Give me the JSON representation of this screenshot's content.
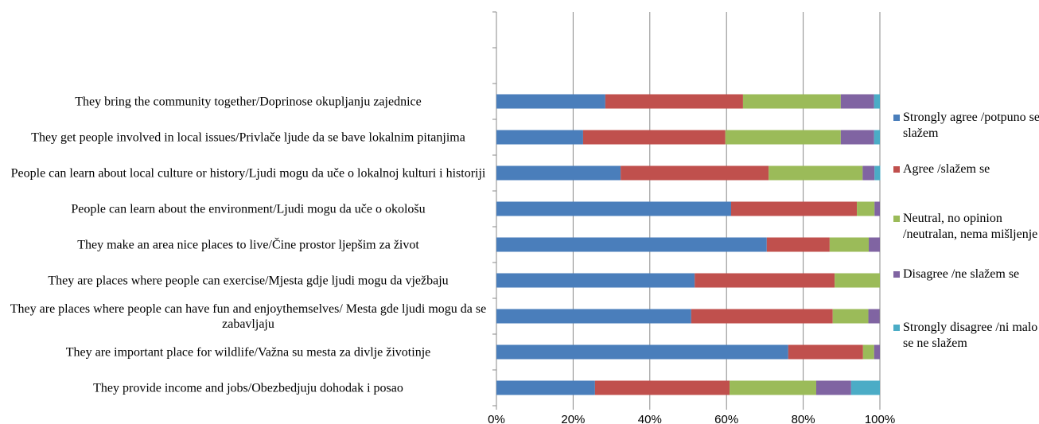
{
  "chart_data": {
    "type": "stacked-barh",
    "categories": [
      null,
      null,
      "They bring the community together/Doprinose okupljanju zajednice",
      "They get people involved in local issues/Privlače ljude da se bave lokalnim pitanjima",
      "People can learn about local culture or history/Ljudi mogu da uče o lokalnoj kulturi i historiji",
      "People can learn about the environment/Ljudi mogu da uče o okološu",
      "They make an area nice places to live/Čine prostor ljepšim za život",
      "They are places where people can exercise/Mjesta gdje ljudi mogu da vježbaju",
      "They are places where people can have fun and enjoythemselves/ Mesta gde ljudi mogu da se zabavljaju",
      "They are important place for wildlife/Važna su mesta za divlje životinje",
      "They provide income and jobs/Obezbedjuju dohodak i posao"
    ],
    "series": [
      {
        "name": "Strongly agree /potpuno se slažem",
        "color": "#4a7ebb",
        "values": [
          null,
          null,
          28.4,
          22.6,
          32.4,
          61.2,
          70.5,
          51.7,
          50.8,
          76.1,
          25.7
        ]
      },
      {
        "name": "Agree /slažem se",
        "color": "#c0504d",
        "values": [
          null,
          null,
          35.9,
          37.1,
          38.6,
          32.8,
          16.4,
          36.5,
          36.9,
          19.5,
          35.1
        ]
      },
      {
        "name": "Neutral, no opinion /neutralan, nema mišljenje",
        "color": "#9bbb59",
        "values": [
          null,
          null,
          25.5,
          30.1,
          24.5,
          4.6,
          10.2,
          11.8,
          9.3,
          2.9,
          22.6
        ]
      },
      {
        "name": "Disagree /ne slažem se",
        "color": "#8064a2",
        "values": [
          null,
          null,
          8.7,
          8.7,
          3.1,
          1.4,
          2.9,
          0,
          2.9,
          1.5,
          9.1
        ]
      },
      {
        "name": "Strongly disagree /ni malo se ne slažem",
        "color": "#4bacc6",
        "values": [
          null,
          null,
          1.5,
          1.5,
          1.5,
          0,
          0,
          0,
          0,
          0,
          7.5
        ]
      }
    ],
    "xlim": [
      0,
      100
    ],
    "xticks": [
      {
        "value": 0,
        "label": "0%"
      },
      {
        "value": 20,
        "label": "20%"
      },
      {
        "value": 40,
        "label": "40%"
      },
      {
        "value": 60,
        "label": "60%"
      },
      {
        "value": 80,
        "label": "80%"
      },
      {
        "value": 100,
        "label": "100%"
      }
    ],
    "grid": true,
    "legend": "right"
  }
}
